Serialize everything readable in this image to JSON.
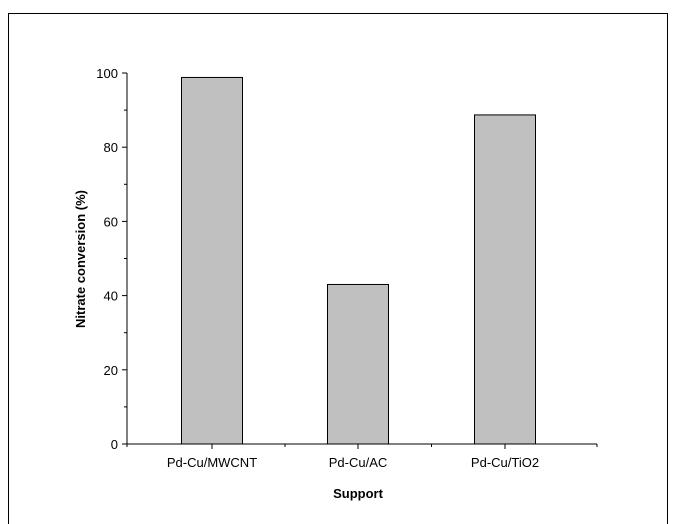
{
  "chart_data": {
    "type": "bar",
    "categories": [
      "Pd-Cu/MWCNT",
      "Pd-Cu/AC",
      "Pd-Cu/TiO2"
    ],
    "values": [
      98.8,
      43.0,
      88.7
    ],
    "title": "",
    "xlabel": "Support",
    "ylabel": "Nitrate conversion (%)",
    "ylim": [
      0,
      100
    ],
    "yticks": [
      0,
      20,
      40,
      60,
      80,
      100
    ],
    "grid": false,
    "bar_color": "#c0c0c0",
    "bar_edge_color": "#000000"
  }
}
